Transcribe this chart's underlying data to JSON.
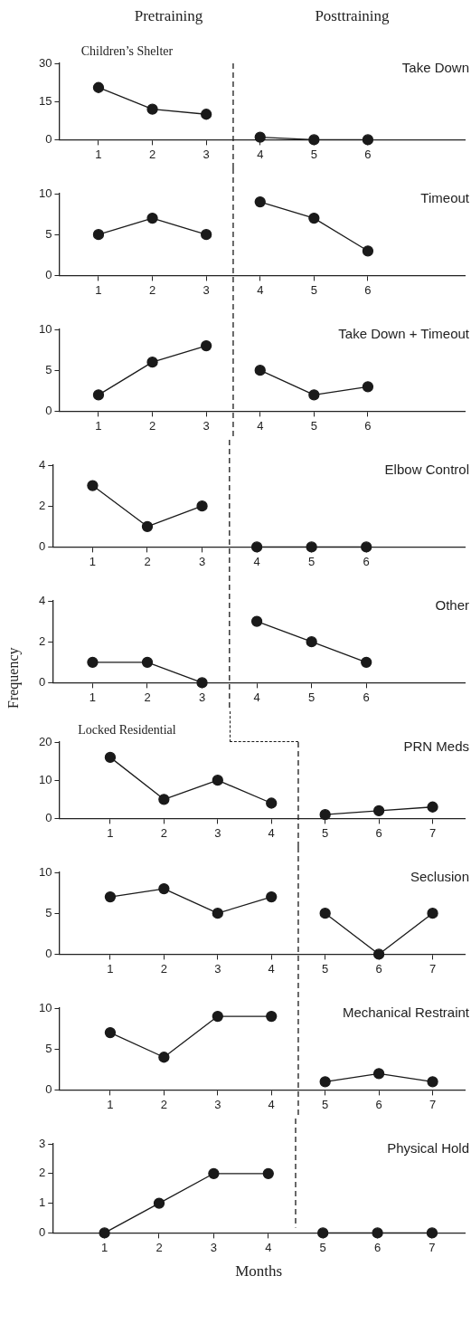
{
  "chart_data": [
    {
      "type": "line",
      "title": "Take Down",
      "subtitle": "Children’s Shelter",
      "annotations": [
        "Pretraining",
        "Posttraining"
      ],
      "xlim": [
        0.27,
        7.8
      ],
      "xticks": [
        1,
        2,
        3,
        4,
        5,
        6
      ],
      "ylim": [
        0,
        30
      ],
      "yticks": [
        0,
        15,
        30
      ],
      "marker": "circle",
      "line_style": "solid",
      "grid": false,
      "legend": false,
      "series": [
        {
          "color": "#1a1a1a",
          "x": [
            1,
            2,
            3
          ],
          "values": [
            20.5,
            12,
            10
          ]
        },
        {
          "color": "#1a1a1a",
          "x": [
            4,
            5,
            6
          ],
          "values": [
            1,
            0,
            0
          ]
        }
      ],
      "ref_lines": [
        {
          "axis": "x",
          "value": 3.5,
          "line_style": "dashed",
          "color": "#1a1a1a"
        }
      ]
    },
    {
      "type": "line",
      "title": "Timeout",
      "xlim": [
        0.27,
        7.8
      ],
      "xticks": [
        1,
        2,
        3,
        4,
        5,
        6
      ],
      "ylim": [
        0,
        10
      ],
      "yticks": [
        0,
        5,
        10
      ],
      "marker": "circle",
      "line_style": "solid",
      "grid": false,
      "legend": false,
      "series": [
        {
          "color": "#1a1a1a",
          "x": [
            1,
            2,
            3
          ],
          "values": [
            5,
            7,
            5
          ]
        },
        {
          "color": "#1a1a1a",
          "x": [
            4,
            5,
            6
          ],
          "values": [
            9,
            7,
            3
          ]
        }
      ],
      "ref_lines": [
        {
          "axis": "x",
          "value": 3.5,
          "line_style": "dashed",
          "color": "#1a1a1a"
        }
      ]
    },
    {
      "type": "line",
      "title": "Take Down + Timeout",
      "xlim": [
        0.27,
        7.8
      ],
      "xticks": [
        1,
        2,
        3,
        4,
        5,
        6
      ],
      "ylim": [
        0,
        10
      ],
      "yticks": [
        0,
        5,
        10
      ],
      "marker": "circle",
      "line_style": "solid",
      "grid": false,
      "legend": false,
      "series": [
        {
          "color": "#1a1a1a",
          "x": [
            1,
            2,
            3
          ],
          "values": [
            2,
            6,
            8
          ]
        },
        {
          "color": "#1a1a1a",
          "x": [
            4,
            5,
            6
          ],
          "values": [
            5,
            2,
            3
          ]
        }
      ],
      "ref_lines": [
        {
          "axis": "x",
          "value": 3.5,
          "line_style": "dashed",
          "color": "#1a1a1a"
        }
      ]
    },
    {
      "type": "line",
      "title": "Elbow Control",
      "xlim": [
        0.27,
        7.8
      ],
      "xticks": [
        1,
        2,
        3,
        4,
        5,
        6
      ],
      "ylim": [
        0,
        4
      ],
      "yticks": [
        0,
        2,
        4
      ],
      "marker": "circle",
      "line_style": "solid",
      "grid": false,
      "legend": false,
      "series": [
        {
          "color": "#1a1a1a",
          "x": [
            1,
            2,
            3
          ],
          "values": [
            3,
            1,
            2
          ]
        },
        {
          "color": "#1a1a1a",
          "x": [
            4,
            5,
            6
          ],
          "values": [
            0,
            0,
            0
          ]
        }
      ],
      "ref_lines": [
        {
          "axis": "x",
          "value": 3.5,
          "line_style": "dashed",
          "color": "#1a1a1a"
        }
      ]
    },
    {
      "type": "line",
      "title": "Other",
      "ylabel": "Frequency",
      "xlim": [
        0.27,
        7.8
      ],
      "xticks": [
        1,
        2,
        3,
        4,
        5,
        6
      ],
      "ylim": [
        0,
        4
      ],
      "yticks": [
        0,
        2,
        4
      ],
      "marker": "circle",
      "line_style": "solid",
      "grid": false,
      "legend": false,
      "series": [
        {
          "color": "#1a1a1a",
          "x": [
            1,
            2,
            3
          ],
          "values": [
            1,
            1,
            0
          ]
        },
        {
          "color": "#1a1a1a",
          "x": [
            4,
            5,
            6
          ],
          "values": [
            3,
            2,
            1
          ]
        }
      ],
      "ref_lines": [
        {
          "axis": "x",
          "value": 3.5,
          "line_style": "dashed",
          "color": "#1a1a1a"
        }
      ]
    },
    {
      "type": "line",
      "title": "PRN Meds",
      "subtitle": "Locked Residential",
      "xlim": [
        0.05,
        7.6
      ],
      "xticks": [
        1,
        2,
        3,
        4,
        5,
        6,
        7
      ],
      "ylim": [
        0,
        20
      ],
      "yticks": [
        0,
        10,
        20
      ],
      "marker": "circle",
      "line_style": "solid",
      "grid": false,
      "legend": false,
      "series": [
        {
          "color": "#1a1a1a",
          "x": [
            1,
            2,
            3,
            4
          ],
          "values": [
            16,
            5,
            10,
            4
          ]
        },
        {
          "color": "#1a1a1a",
          "x": [
            5,
            6,
            7
          ],
          "values": [
            1,
            2,
            3
          ]
        }
      ],
      "ref_lines": [
        {
          "axis": "x",
          "value": 4.5,
          "line_style": "dashed",
          "color": "#1a1a1a"
        }
      ]
    },
    {
      "type": "line",
      "title": "Seclusion",
      "xlim": [
        0.05,
        7.6
      ],
      "xticks": [
        1,
        2,
        3,
        4,
        5,
        6,
        7
      ],
      "ylim": [
        0,
        10
      ],
      "yticks": [
        0,
        5,
        10
      ],
      "marker": "circle",
      "line_style": "solid",
      "grid": false,
      "legend": false,
      "series": [
        {
          "color": "#1a1a1a",
          "x": [
            1,
            2,
            3,
            4
          ],
          "values": [
            7,
            8,
            5,
            7
          ]
        },
        {
          "color": "#1a1a1a",
          "x": [
            5,
            6,
            7
          ],
          "values": [
            5,
            0,
            5
          ]
        }
      ],
      "ref_lines": [
        {
          "axis": "x",
          "value": 4.5,
          "line_style": "dashed",
          "color": "#1a1a1a"
        }
      ]
    },
    {
      "type": "line",
      "title": "Mechanical Restraint",
      "xlim": [
        0.05,
        7.6
      ],
      "xticks": [
        1,
        2,
        3,
        4,
        5,
        6,
        7
      ],
      "ylim": [
        0,
        10
      ],
      "yticks": [
        0,
        5,
        10
      ],
      "marker": "circle",
      "line_style": "solid",
      "grid": false,
      "legend": false,
      "series": [
        {
          "color": "#1a1a1a",
          "x": [
            1,
            2,
            3,
            4
          ],
          "values": [
            7,
            4,
            9,
            9
          ]
        },
        {
          "color": "#1a1a1a",
          "x": [
            5,
            6,
            7
          ],
          "values": [
            1,
            2,
            1
          ]
        }
      ],
      "ref_lines": [
        {
          "axis": "x",
          "value": 4.5,
          "line_style": "dashed",
          "color": "#1a1a1a"
        }
      ]
    },
    {
      "type": "line",
      "title": "Physical Hold",
      "xlabel": "Months",
      "xlim": [
        0.05,
        7.6
      ],
      "xticks": [
        1,
        2,
        3,
        4,
        5,
        6,
        7
      ],
      "ylim": [
        0,
        3
      ],
      "yticks": [
        0,
        1,
        2,
        3
      ],
      "marker": "circle",
      "line_style": "solid",
      "grid": false,
      "legend": false,
      "series": [
        {
          "color": "#1a1a1a",
          "x": [
            1,
            2,
            3,
            4
          ],
          "values": [
            0,
            1,
            2,
            2
          ]
        },
        {
          "color": "#1a1a1a",
          "x": [
            5,
            6,
            7
          ],
          "values": [
            0,
            0,
            0
          ]
        }
      ],
      "ref_lines": [
        {
          "axis": "x",
          "value": 4.5,
          "line_style": "dashed",
          "color": "#1a1a1a"
        }
      ]
    }
  ]
}
